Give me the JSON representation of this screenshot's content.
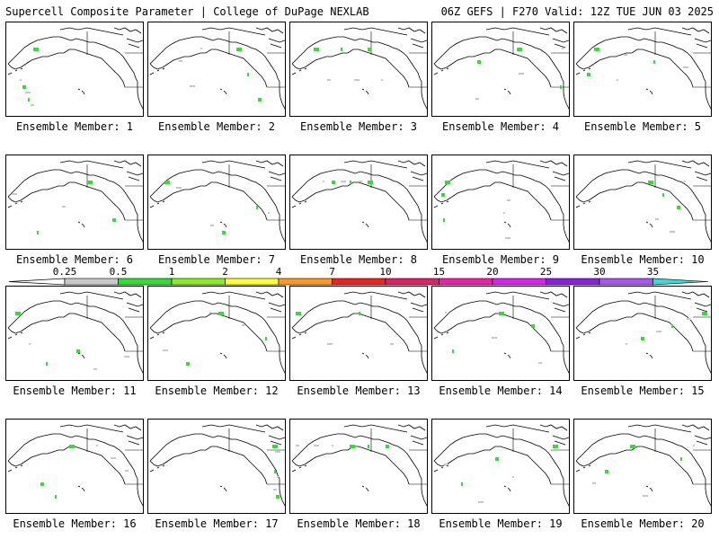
{
  "header": {
    "left": "Supercell Composite Parameter | College of DuPage NEXLAB",
    "right": "06Z GEFS | F270 Valid: 12Z TUE JUN 03 2025"
  },
  "members": [
    {
      "label": "Ensemble Member: 1"
    },
    {
      "label": "Ensemble Member: 2"
    },
    {
      "label": "Ensemble Member: 3"
    },
    {
      "label": "Ensemble Member: 4"
    },
    {
      "label": "Ensemble Member: 5"
    },
    {
      "label": "Ensemble Member: 6"
    },
    {
      "label": "Ensemble Member: 7"
    },
    {
      "label": "Ensemble Member: 8"
    },
    {
      "label": "Ensemble Member: 9"
    },
    {
      "label": "Ensemble Member: 10"
    },
    {
      "label": "Ensemble Member: 11"
    },
    {
      "label": "Ensemble Member: 12"
    },
    {
      "label": "Ensemble Member: 13"
    },
    {
      "label": "Ensemble Member: 14"
    },
    {
      "label": "Ensemble Member: 15"
    },
    {
      "label": "Ensemble Member: 16"
    },
    {
      "label": "Ensemble Member: 17"
    },
    {
      "label": "Ensemble Member: 18"
    },
    {
      "label": "Ensemble Member: 19"
    },
    {
      "label": "Ensemble Member: 20"
    }
  ],
  "colorbar": {
    "ticks": [
      "0.25",
      "0.5",
      "1",
      "2",
      "4",
      "7",
      "10",
      "15",
      "20",
      "25",
      "30",
      "35"
    ],
    "colors": [
      "#c8c8c8",
      "#33dd33",
      "#88ee22",
      "#ffff33",
      "#ff9922",
      "#ee2222",
      "#dd2266",
      "#ee22aa",
      "#dd22ee",
      "#8822dd",
      "#aa55ee",
      "#33dddd"
    ]
  }
}
